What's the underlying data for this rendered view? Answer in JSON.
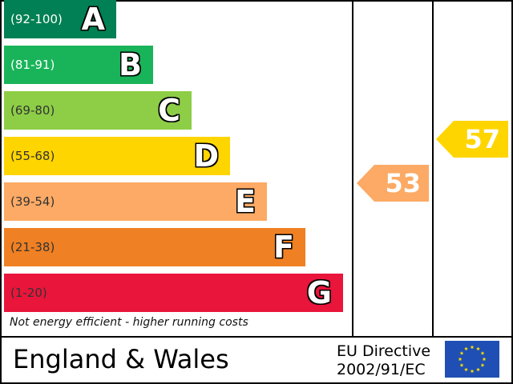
{
  "bands": [
    {
      "range": "(92-100)",
      "letter": "A",
      "color": "#008054",
      "text_color": "#ffffff"
    },
    {
      "range": "(81-91)",
      "letter": "B",
      "color": "#19b459",
      "text_color": "#ffffff"
    },
    {
      "range": "(69-80)",
      "letter": "C",
      "color": "#8dce46",
      "text_color": "#333333"
    },
    {
      "range": "(55-68)",
      "letter": "D",
      "color": "#ffd500",
      "text_color": "#333333"
    },
    {
      "range": "(39-54)",
      "letter": "E",
      "color": "#fcaa65",
      "text_color": "#333333"
    },
    {
      "range": "(21-38)",
      "letter": "F",
      "color": "#ef8023",
      "text_color": "#333333"
    },
    {
      "range": "(1-20)",
      "letter": "G",
      "color": "#e9153b",
      "text_color": "#333333"
    }
  ],
  "footnote": "Not energy efficient - higher running costs",
  "current": {
    "value": "53",
    "color": "#fcaa65"
  },
  "potential": {
    "value": "57",
    "color": "#ffd500"
  },
  "region": "England & Wales",
  "directive": {
    "line1": "EU Directive",
    "line2": "2002/91/EC"
  },
  "eu_flag": {
    "background": "#1f4fb4",
    "stars": "#ffdd00"
  },
  "chart_data": {
    "type": "bar",
    "categories": [
      "A",
      "B",
      "C",
      "D",
      "E",
      "F",
      "G"
    ],
    "ranges": [
      "(92-100)",
      "(81-91)",
      "(69-80)",
      "(55-68)",
      "(39-54)",
      "(21-38)",
      "(1-20)"
    ],
    "current": 53,
    "potential": 57
  }
}
